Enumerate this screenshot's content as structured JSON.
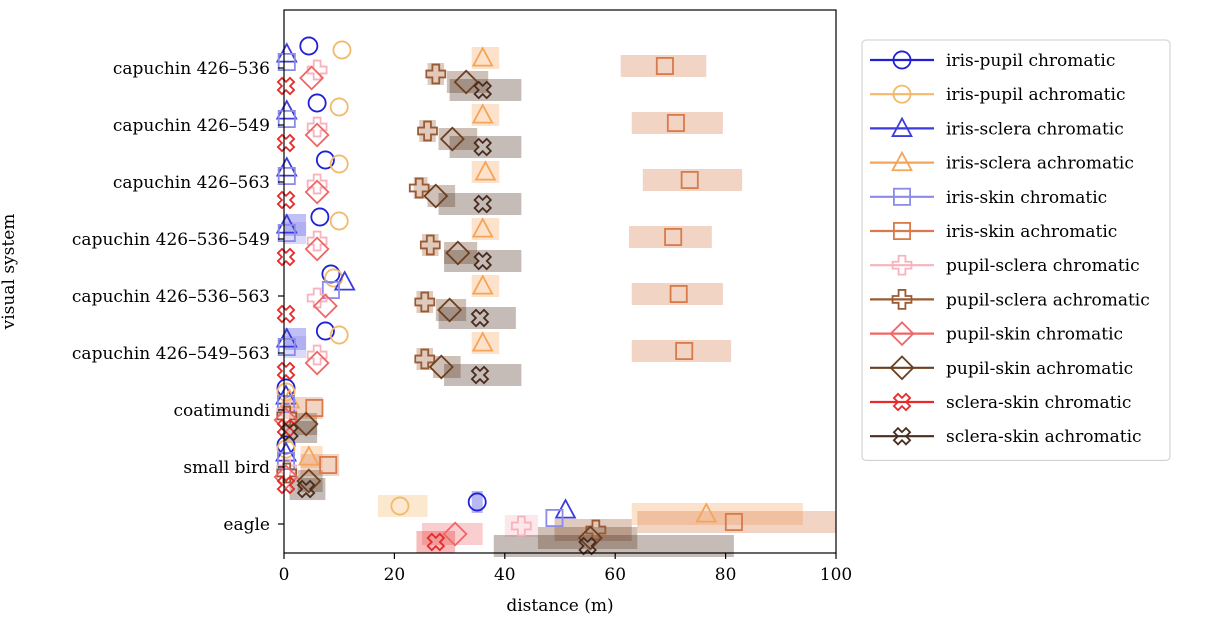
{
  "chart_data": {
    "type": "scatter",
    "xlabel": "distance (m)",
    "ylabel": "visual system",
    "xlim": [
      0,
      100
    ],
    "xticks": [
      0,
      20,
      40,
      60,
      80,
      100
    ],
    "categories": [
      "capuchin 426–536",
      "capuchin 426–549",
      "capuchin 426–563",
      "capuchin 426–536–549",
      "capuchin 426–536–563",
      "capuchin 426–549–563",
      "coatimundi",
      "small bird",
      "eagle"
    ],
    "legend_position": "right, outside plot",
    "grid": false,
    "series": [
      {
        "name": "iris-pupil chromatic",
        "color": "#1f1fd6",
        "marker": "circle",
        "fill": false,
        "values": [
          4.5,
          6,
          7.5,
          6.5,
          8.5,
          7.5,
          0.2,
          0.2,
          35
        ],
        "ranges": [
          null,
          null,
          null,
          null,
          null,
          null,
          null,
          null,
          [
            34,
            36
          ]
        ]
      },
      {
        "name": "iris-pupil achromatic",
        "color": "#f2b96b",
        "marker": "circle",
        "fill": false,
        "values": [
          10.5,
          10,
          10,
          10,
          9,
          10,
          0.2,
          0.2,
          21
        ],
        "ranges": [
          null,
          null,
          null,
          null,
          null,
          null,
          null,
          null,
          [
            17,
            26
          ]
        ]
      },
      {
        "name": "iris-sclera chromatic",
        "color": "#3b3be0",
        "marker": "triangle",
        "fill": false,
        "values": [
          0.5,
          0.5,
          0.5,
          0.5,
          11,
          0.5,
          0.3,
          0.3,
          51
        ],
        "ranges": [
          null,
          null,
          null,
          [
            0,
            4
          ],
          null,
          [
            0,
            4
          ],
          null,
          null,
          null
        ]
      },
      {
        "name": "iris-sclera achromatic",
        "color": "#f5a55a",
        "marker": "triangle",
        "fill": false,
        "values": [
          36,
          36,
          36.5,
          36,
          36,
          36,
          1,
          4.5,
          76.5
        ],
        "ranges": [
          [
            34,
            39
          ],
          [
            34,
            39
          ],
          [
            34,
            39
          ],
          [
            34,
            39
          ],
          [
            34,
            39
          ],
          [
            34,
            39
          ],
          null,
          [
            3,
            7
          ],
          [
            63,
            94
          ]
        ]
      },
      {
        "name": "iris-skin chromatic",
        "color": "#8c8ce8",
        "marker": "square",
        "fill": false,
        "values": [
          0.5,
          0.5,
          0.5,
          0.5,
          8.5,
          0.5,
          0.2,
          0.2,
          49
        ],
        "ranges": [
          null,
          null,
          null,
          [
            0,
            4
          ],
          null,
          [
            0,
            4
          ],
          null,
          null,
          null
        ]
      },
      {
        "name": "iris-skin achromatic",
        "color": "#d87a4a",
        "marker": "square",
        "fill": false,
        "values": [
          69,
          71,
          73.5,
          70.5,
          71.5,
          72.5,
          5.5,
          8,
          81.5
        ],
        "ranges": [
          [
            61,
            76.5
          ],
          [
            63,
            79.5
          ],
          [
            65,
            83
          ],
          [
            62.5,
            77.5
          ],
          [
            63,
            79.5
          ],
          [
            63,
            81
          ],
          [
            0,
            7
          ],
          [
            3,
            10
          ],
          [
            64,
            100
          ]
        ]
      },
      {
        "name": "pupil-sclera chromatic",
        "color": "#f7b3bd",
        "marker": "plus",
        "fill": false,
        "values": [
          6,
          6,
          6,
          6,
          6,
          6,
          0.5,
          0.5,
          43
        ],
        "ranges": [
          null,
          null,
          null,
          null,
          null,
          null,
          null,
          null,
          [
            40,
            46
          ]
        ]
      },
      {
        "name": "pupil-sclera achromatic",
        "color": "#9a5a33",
        "marker": "plus",
        "fill": false,
        "values": [
          27.5,
          26,
          24.5,
          26.5,
          25.5,
          25.5,
          0.5,
          0.5,
          56.5
        ],
        "ranges": [
          [
            26,
            29
          ],
          [
            24.5,
            27.5
          ],
          [
            23.5,
            26
          ],
          [
            25,
            28
          ],
          [
            24,
            27
          ],
          [
            24,
            27
          ],
          null,
          null,
          [
            49,
            63
          ]
        ]
      },
      {
        "name": "pupil-skin chromatic",
        "color": "#f06666",
        "marker": "diamond",
        "fill": false,
        "values": [
          5,
          6,
          6,
          6,
          7.5,
          6,
          0.3,
          0.3,
          31
        ],
        "ranges": [
          null,
          null,
          null,
          null,
          null,
          null,
          null,
          null,
          [
            25,
            36
          ]
        ]
      },
      {
        "name": "pupil-skin achromatic",
        "color": "#6b3f1f",
        "marker": "diamond",
        "fill": false,
        "values": [
          33,
          30.5,
          27.5,
          31.5,
          30,
          28.5,
          4,
          4.5,
          55.5
        ],
        "ranges": [
          [
            29.5,
            37
          ],
          [
            28,
            35
          ],
          [
            26,
            31
          ],
          [
            29,
            35
          ],
          [
            27.5,
            33
          ],
          [
            27,
            32
          ],
          [
            2,
            6
          ],
          [
            2.5,
            7
          ],
          [
            46,
            64
          ]
        ]
      },
      {
        "name": "sclera-skin chromatic",
        "color": "#e62a2a",
        "marker": "x",
        "fill": false,
        "values": [
          0.3,
          0.3,
          0.3,
          0.3,
          0.3,
          0.3,
          0.3,
          0.3,
          27.5
        ],
        "ranges": [
          null,
          null,
          null,
          null,
          null,
          null,
          null,
          null,
          [
            24,
            31
          ]
        ]
      },
      {
        "name": "sclera-skin achromatic",
        "color": "#4a2c1f",
        "marker": "x",
        "fill": false,
        "values": [
          36,
          36,
          36,
          36,
          35.5,
          35.5,
          1,
          4,
          55
        ],
        "ranges": [
          [
            30,
            43
          ],
          [
            30,
            43
          ],
          [
            28,
            43
          ],
          [
            29,
            43
          ],
          [
            28,
            42
          ],
          [
            29,
            43
          ],
          [
            0,
            6
          ],
          [
            1,
            7.5
          ],
          [
            38,
            81.5
          ]
        ]
      }
    ]
  }
}
